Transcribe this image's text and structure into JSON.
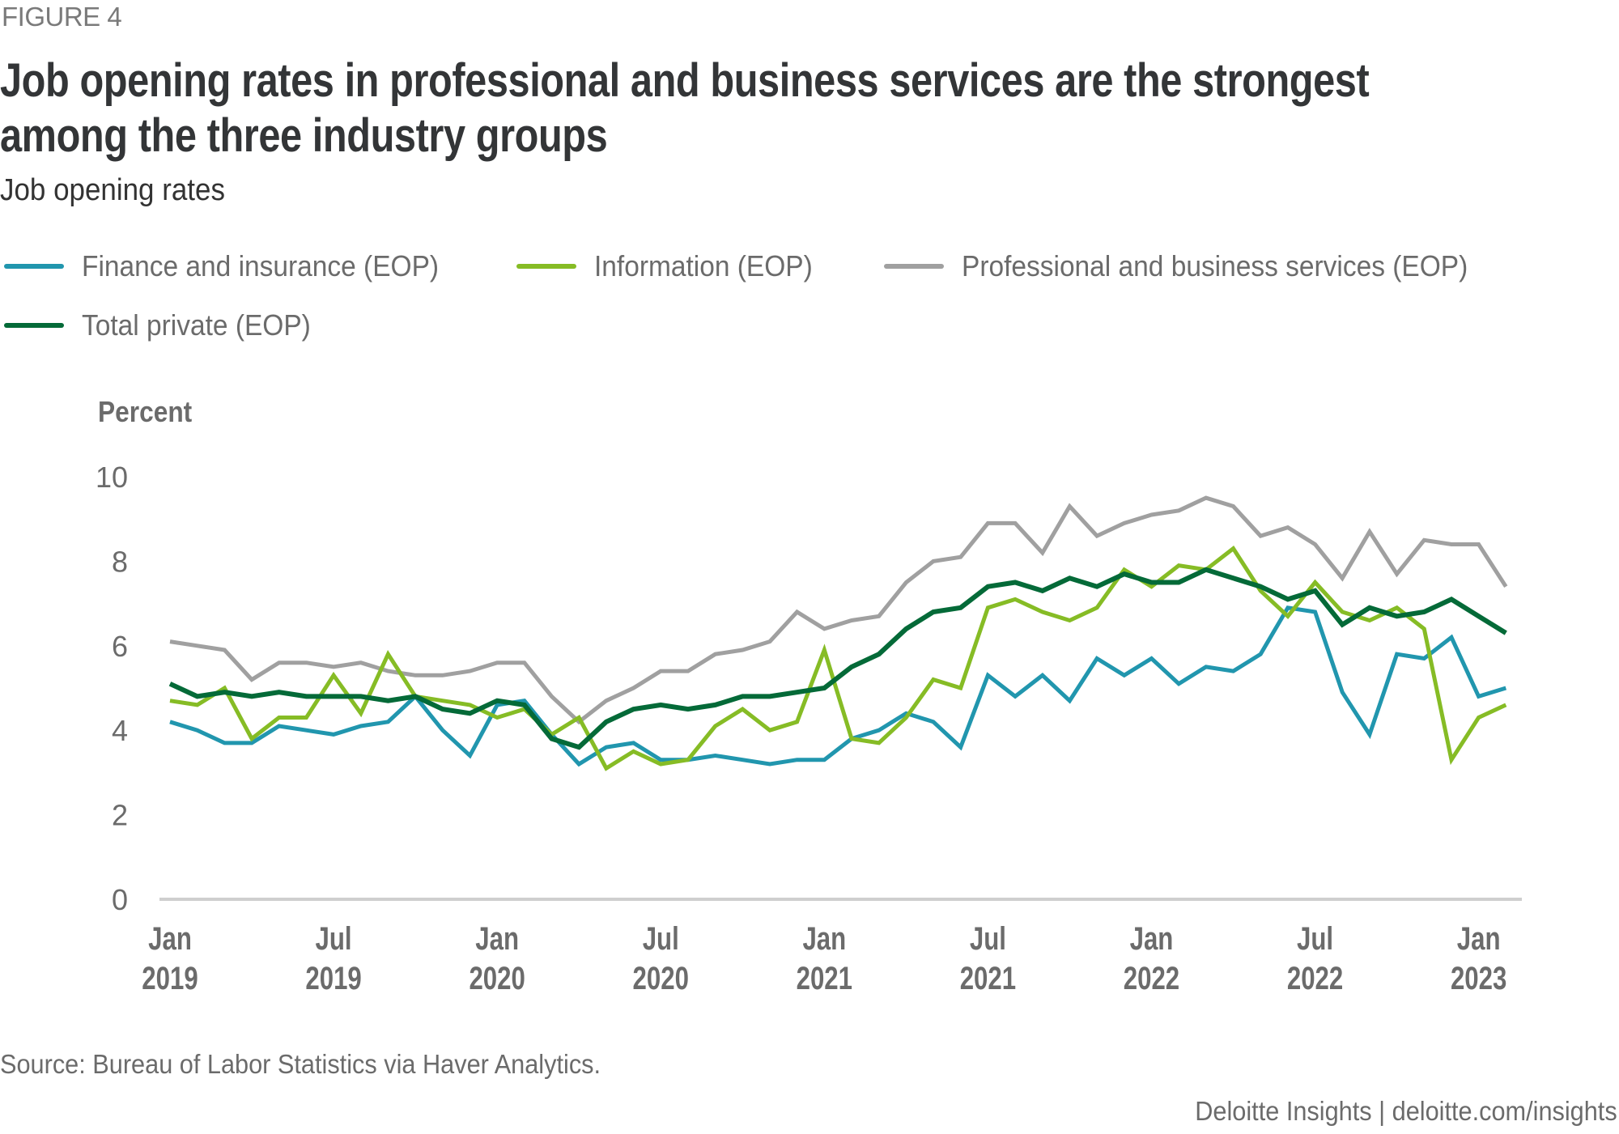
{
  "figure_label": "FIGURE 4",
  "title_lines": [
    "Job opening rates in professional and business services are the strongest",
    "among the three industry groups"
  ],
  "subtitle": "Job opening rates",
  "source": "Source: Bureau of Labor Statistics via Haver Analytics.",
  "credit": "Deloitte Insights | deloitte.com/insights",
  "chart_data": {
    "type": "line",
    "title": "Job opening rates in professional and business services are the strongest among the three industry groups",
    "subtitle": "Job opening rates",
    "xlabel": "",
    "ylabel": "Percent",
    "ylim": [
      0,
      10
    ],
    "yticks": [
      "0",
      "2",
      "4",
      "6",
      "8",
      "10"
    ],
    "ytick_values": [
      0,
      2,
      4,
      6,
      8,
      10
    ],
    "grid": false,
    "legend_position": "top",
    "x_start": "Jan 2019",
    "x_frequency": "monthly",
    "x": [
      "Jan 2019",
      "Feb 2019",
      "Mar 2019",
      "Apr 2019",
      "May 2019",
      "Jun 2019",
      "Jul 2019",
      "Aug 2019",
      "Sep 2019",
      "Oct 2019",
      "Nov 2019",
      "Dec 2019",
      "Jan 2020",
      "Feb 2020",
      "Mar 2020",
      "Apr 2020",
      "May 2020",
      "Jun 2020",
      "Jul 2020",
      "Aug 2020",
      "Sep 2020",
      "Oct 2020",
      "Nov 2020",
      "Dec 2020",
      "Jan 2021",
      "Feb 2021",
      "Mar 2021",
      "Apr 2021",
      "May 2021",
      "Jun 2021",
      "Jul 2021",
      "Aug 2021",
      "Sep 2021",
      "Oct 2021",
      "Nov 2021",
      "Dec 2021",
      "Jan 2022",
      "Feb 2022",
      "Mar 2022",
      "Apr 2022",
      "May 2022",
      "Jun 2022",
      "Jul 2022",
      "Aug 2022",
      "Sep 2022",
      "Oct 2022",
      "Nov 2022",
      "Dec 2022",
      "Jan 2023",
      "Feb 2023"
    ],
    "xticks": [
      {
        "month_index": 0,
        "line1": "Jan",
        "line2": "2019"
      },
      {
        "month_index": 6,
        "line1": "Jul",
        "line2": "2019"
      },
      {
        "month_index": 12,
        "line1": "Jan",
        "line2": "2020"
      },
      {
        "month_index": 18,
        "line1": "Jul",
        "line2": "2020"
      },
      {
        "month_index": 24,
        "line1": "Jan",
        "line2": "2021"
      },
      {
        "month_index": 30,
        "line1": "Jul",
        "line2": "2021"
      },
      {
        "month_index": 36,
        "line1": "Jan",
        "line2": "2022"
      },
      {
        "month_index": 42,
        "line1": "Jul",
        "line2": "2022"
      },
      {
        "month_index": 48,
        "line1": "Jan",
        "line2": "2023"
      }
    ],
    "series": [
      {
        "name": "Finance and insurance (EOP)",
        "color": "#2196AE",
        "values": [
          4.2,
          4.0,
          3.7,
          3.7,
          4.1,
          4.0,
          3.9,
          4.1,
          4.2,
          4.8,
          4.0,
          3.4,
          4.6,
          4.7,
          3.9,
          3.2,
          3.6,
          3.7,
          3.3,
          3.3,
          3.4,
          3.3,
          3.2,
          3.3,
          3.3,
          3.8,
          4.0,
          4.4,
          4.2,
          3.6,
          5.3,
          4.8,
          5.3,
          4.7,
          5.7,
          5.3,
          5.7,
          5.1,
          5.5,
          5.4,
          5.8,
          6.9,
          6.8,
          4.9,
          3.9,
          5.8,
          5.7,
          6.2,
          4.8,
          5.0
        ]
      },
      {
        "name": "Information (EOP)",
        "color": "#86BC25",
        "values": [
          4.7,
          4.6,
          5.0,
          3.8,
          4.3,
          4.3,
          5.3,
          4.4,
          5.8,
          4.8,
          4.7,
          4.6,
          4.3,
          4.5,
          3.9,
          4.3,
          3.1,
          3.5,
          3.2,
          3.3,
          4.1,
          4.5,
          4.0,
          4.2,
          5.9,
          3.8,
          3.7,
          4.3,
          5.2,
          5.0,
          6.9,
          7.1,
          6.8,
          6.6,
          6.9,
          7.8,
          7.4,
          7.9,
          7.8,
          8.3,
          7.3,
          6.7,
          7.5,
          6.8,
          6.6,
          6.9,
          6.4,
          3.3,
          4.3,
          4.6
        ]
      },
      {
        "name": "Professional and business services (EOP)",
        "color": "#A0A0A0",
        "values": [
          6.1,
          6.0,
          5.9,
          5.2,
          5.6,
          5.6,
          5.5,
          5.6,
          5.4,
          5.3,
          5.3,
          5.4,
          5.6,
          5.6,
          4.8,
          4.2,
          4.7,
          5.0,
          5.4,
          5.4,
          5.8,
          5.9,
          6.1,
          6.8,
          6.4,
          6.6,
          6.7,
          7.5,
          8.0,
          8.1,
          8.9,
          8.9,
          8.2,
          9.3,
          8.6,
          8.9,
          9.1,
          9.2,
          9.5,
          9.3,
          8.6,
          8.8,
          8.4,
          7.6,
          8.7,
          7.7,
          8.5,
          8.4,
          8.4,
          7.4
        ]
      },
      {
        "name": "Total private (EOP)",
        "color": "#046A38",
        "values": [
          5.1,
          4.8,
          4.9,
          4.8,
          4.9,
          4.8,
          4.8,
          4.8,
          4.7,
          4.8,
          4.5,
          4.4,
          4.7,
          4.6,
          3.8,
          3.6,
          4.2,
          4.5,
          4.6,
          4.5,
          4.6,
          4.8,
          4.8,
          4.9,
          5.0,
          5.5,
          5.8,
          6.4,
          6.8,
          6.9,
          7.4,
          7.5,
          7.3,
          7.6,
          7.4,
          7.7,
          7.5,
          7.5,
          7.8,
          7.6,
          7.4,
          7.1,
          7.3,
          6.5,
          6.9,
          6.7,
          6.8,
          7.1,
          6.7,
          6.3
        ]
      }
    ],
    "source": "Source: Bureau of Labor Statistics via Haver Analytics."
  }
}
